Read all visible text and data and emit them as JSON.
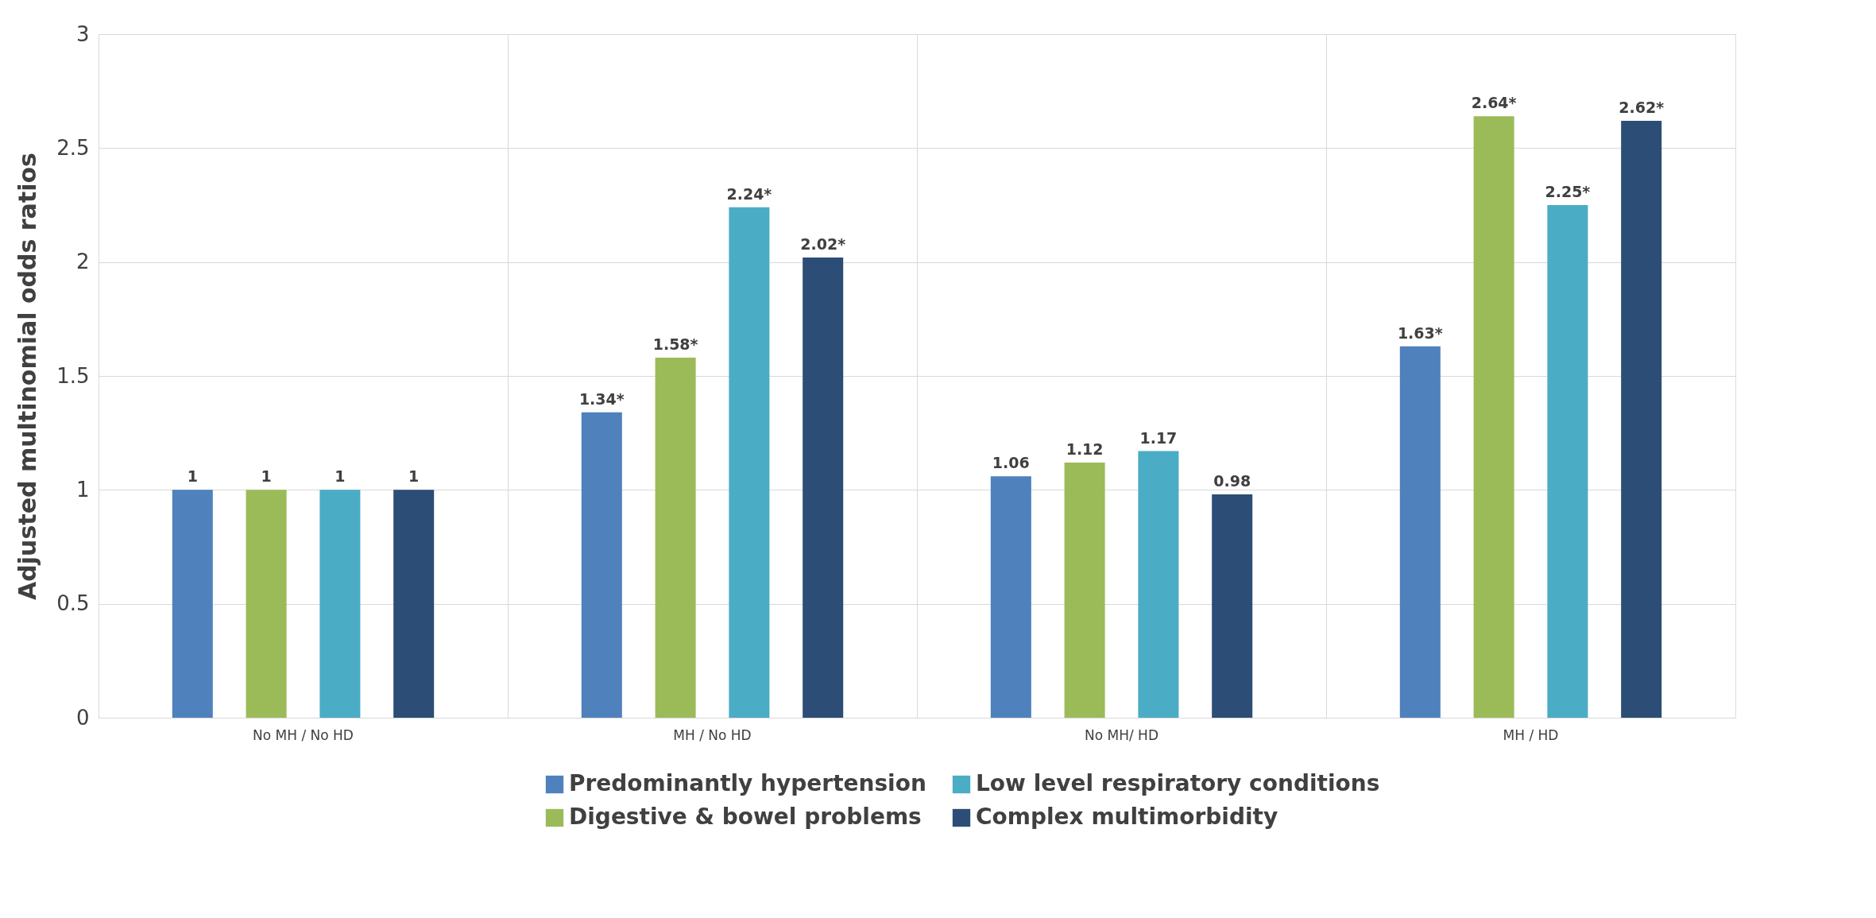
{
  "chart_data": {
    "type": "bar",
    "ylabel": "Adjusted multinomial odds ratios",
    "categories": [
      "No MH / No HD",
      "MH / No HD",
      "No MH/ HD",
      "MH / HD"
    ],
    "series": [
      {
        "name": "Predominantly hypertension",
        "color": "#4f81bd",
        "values": [
          1,
          1.34,
          1.06,
          1.63
        ],
        "value_labels": [
          "1",
          "1.34*",
          "1.06",
          "1.63*"
        ]
      },
      {
        "name": "Digestive & bowel problems",
        "color": "#9bbb59",
        "values": [
          1,
          1.58,
          1.12,
          2.64
        ],
        "value_labels": [
          "1",
          "1.58*",
          "1.12",
          "2.64*"
        ]
      },
      {
        "name": "Low level respiratory conditions",
        "color": "#4bacc6",
        "values": [
          1,
          2.24,
          1.17,
          2.25
        ],
        "value_labels": [
          "1",
          "2.24*",
          "1.17",
          "2.25*"
        ]
      },
      {
        "name": "Complex multimorbidity",
        "color": "#2c4d75",
        "values": [
          1,
          2.02,
          0.98,
          2.62
        ],
        "value_labels": [
          "1",
          "2.02*",
          "0.98",
          "2.62*"
        ]
      }
    ],
    "ylim": [
      0,
      3
    ],
    "yticks": [
      0,
      0.5,
      1,
      1.5,
      2,
      2.5,
      3
    ],
    "grid": true,
    "legend": "bottom"
  }
}
